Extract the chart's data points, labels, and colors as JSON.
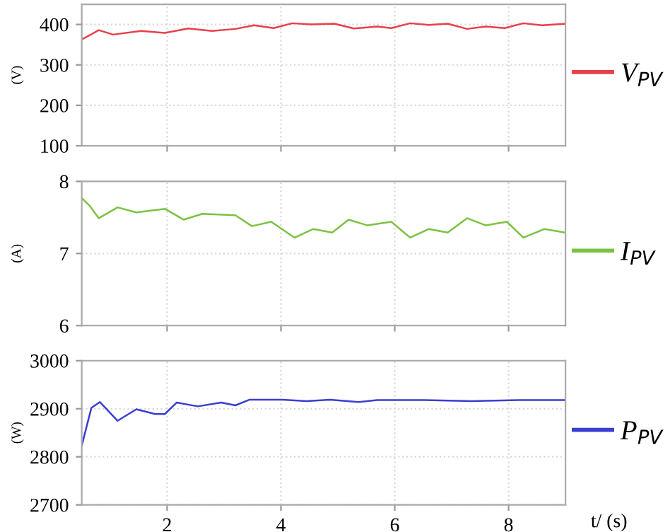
{
  "chart_data": [
    {
      "type": "line",
      "ylabel": "(V)",
      "xlim": [
        0.5,
        9
      ],
      "xticks": [
        2,
        4,
        6,
        8
      ],
      "ylim": [
        100,
        450
      ],
      "yticks": [
        100,
        200,
        300,
        400
      ],
      "grid": true,
      "tick_labels": "y",
      "legend": "right",
      "marker": "none",
      "line_style": "solid",
      "series": [
        {
          "name": "V$_{PV}$",
          "color": "#e8404a",
          "x": [
            0.5,
            0.8,
            1.05,
            1.54,
            1.96,
            2.37,
            2.79,
            3.2,
            3.53,
            3.87,
            4.2,
            4.53,
            4.94,
            5.28,
            5.69,
            5.94,
            6.27,
            6.6,
            6.93,
            7.27,
            7.6,
            7.93,
            8.26,
            8.59,
            9.0
          ],
          "values": [
            363,
            386,
            375,
            384,
            379,
            390,
            384,
            389,
            398,
            391,
            403,
            400,
            402,
            390,
            395,
            391,
            403,
            399,
            402,
            389,
            395,
            391,
            403,
            398,
            402
          ]
        }
      ]
    },
    {
      "type": "line",
      "ylabel": "(A)",
      "xlim": [
        0.5,
        9
      ],
      "xticks": [
        2,
        4,
        6,
        8
      ],
      "ylim": [
        6,
        8
      ],
      "yticks": [
        6,
        7,
        8
      ],
      "grid": true,
      "tick_labels": "y",
      "legend": "right",
      "marker": "none",
      "line_style": "solid",
      "series": [
        {
          "name": "I$_{PV}$",
          "color": "#7cc242",
          "x": [
            0.5,
            0.63,
            0.8,
            1.13,
            1.46,
            1.96,
            2.29,
            2.62,
            3.2,
            3.49,
            3.83,
            4.24,
            4.57,
            4.9,
            5.19,
            5.52,
            5.94,
            6.27,
            6.6,
            6.93,
            7.27,
            7.6,
            7.97,
            8.26,
            8.63,
            9.0
          ],
          "values": [
            7.77,
            7.67,
            7.49,
            7.64,
            7.57,
            7.62,
            7.47,
            7.55,
            7.53,
            7.38,
            7.44,
            7.22,
            7.34,
            7.29,
            7.47,
            7.39,
            7.44,
            7.22,
            7.34,
            7.29,
            7.49,
            7.39,
            7.44,
            7.22,
            7.34,
            7.29
          ]
        }
      ]
    },
    {
      "type": "line",
      "xlabel": "t/ (s)",
      "ylabel": "(W)",
      "xlim": [
        0.5,
        9
      ],
      "xticks": [
        2,
        4,
        6,
        8
      ],
      "ylim": [
        2700,
        3000
      ],
      "yticks": [
        2700,
        2800,
        2900,
        3000
      ],
      "grid": true,
      "legend": "right",
      "marker": "none",
      "line_style": "solid",
      "series": [
        {
          "name": "P$_{PV}$",
          "color": "#3a3fd0",
          "x": [
            0.5,
            0.67,
            0.82,
            1.13,
            1.46,
            1.79,
            1.96,
            2.17,
            2.54,
            2.95,
            3.2,
            3.45,
            4.03,
            4.45,
            4.86,
            5.36,
            5.69,
            6.52,
            7.35,
            8.18,
            9.0
          ],
          "values": [
            2823,
            2902,
            2914,
            2875,
            2899,
            2889,
            2889,
            2913,
            2905,
            2913,
            2907,
            2919,
            2919,
            2916,
            2919,
            2914,
            2918,
            2918,
            2916,
            2918,
            2918
          ]
        }
      ]
    }
  ]
}
